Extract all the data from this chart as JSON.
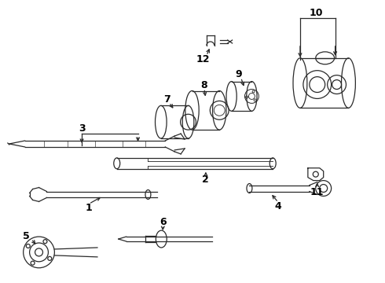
{
  "bg_color": "#ffffff",
  "line_color": "#2a2a2a",
  "label_color": "#000000",
  "figsize": [
    4.9,
    3.6
  ],
  "dpi": 100,
  "xlim": [
    0,
    490
  ],
  "ylim": [
    0,
    360
  ],
  "label_fontsize": 9,
  "label_fontweight": "bold",
  "lw": 0.9
}
